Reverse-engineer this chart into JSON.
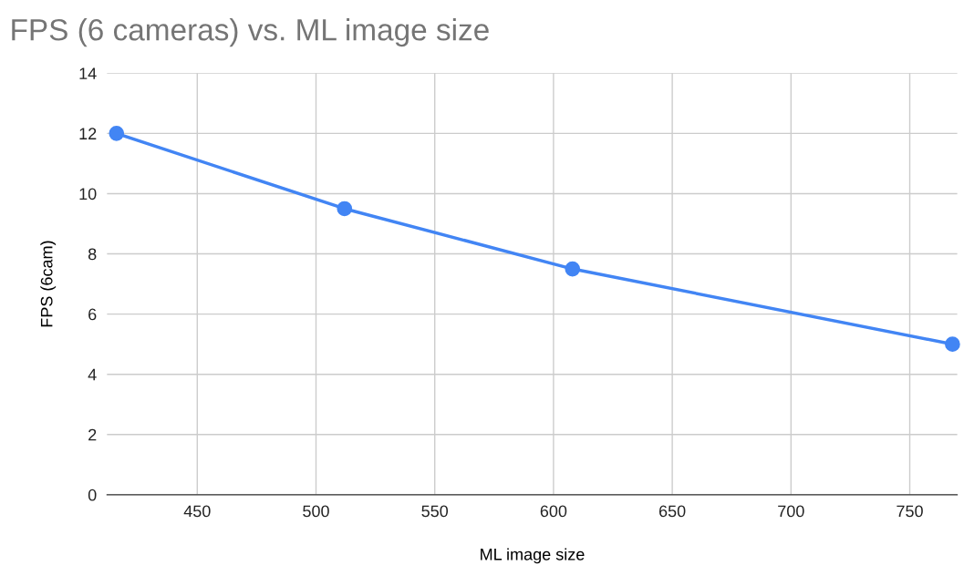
{
  "chart_data": {
    "type": "line",
    "title": "FPS (6 cameras) vs. ML image size",
    "xlabel": "ML image size",
    "ylabel": "FPS (6cam)",
    "x": [
      416,
      512,
      608,
      768
    ],
    "series": [
      {
        "color": "#4285f4",
        "values": [
          12,
          9.5,
          7.5,
          5
        ]
      }
    ],
    "xlim": [
      412,
      770
    ],
    "xticks": [
      450,
      500,
      550,
      600,
      650,
      700,
      750
    ],
    "ylim": [
      0,
      14
    ],
    "yticks": [
      0,
      2,
      4,
      6,
      8,
      10,
      12,
      14
    ],
    "grid": true,
    "marker": "circle",
    "line_style": "solid",
    "legend": false
  }
}
